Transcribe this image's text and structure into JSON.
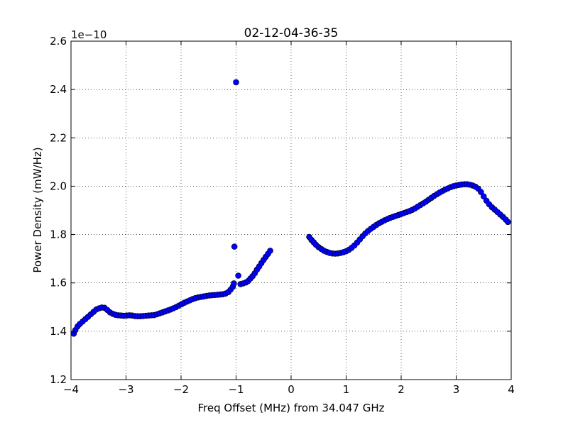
{
  "chart_data": {
    "type": "scatter",
    "title": "02-12-04-36-35",
    "xlabel": "Freq Offset (MHz) from 34.047 GHz",
    "ylabel": "Power Density (mW/Hz)",
    "offset_label": "1e−10",
    "xlim": [
      -4,
      4
    ],
    "ylim": [
      1.2,
      2.6
    ],
    "y_multiplier": "1e-10",
    "xticks": [
      -4,
      -3,
      -2,
      -1,
      0,
      1,
      2,
      3,
      4
    ],
    "xtick_labels": [
      "−4",
      "−3",
      "−2",
      "−1",
      "0",
      "1",
      "2",
      "3",
      "4"
    ],
    "yticks": [
      1.2,
      1.4,
      1.6,
      1.8,
      2.0,
      2.2,
      2.4,
      2.6
    ],
    "ytick_labels": [
      "1.2",
      "1.4",
      "1.6",
      "1.8",
      "2.0",
      "2.2",
      "2.4",
      "2.6"
    ],
    "grid": true,
    "marker_color": "#0000ff",
    "marker_edge_color": "#000000",
    "series": [
      {
        "points": [
          [
            -3.95,
            1.39
          ],
          [
            -3.92,
            1.405
          ],
          [
            -3.88,
            1.42
          ],
          [
            -3.84,
            1.43
          ],
          [
            -3.79,
            1.44
          ],
          [
            -3.74,
            1.45
          ],
          [
            -3.69,
            1.46
          ],
          [
            -3.64,
            1.47
          ],
          [
            -3.59,
            1.48
          ],
          [
            -3.54,
            1.49
          ],
          [
            -3.49,
            1.495
          ],
          [
            -3.44,
            1.498
          ],
          [
            -3.39,
            1.497
          ],
          [
            -3.34,
            1.488
          ],
          [
            -3.29,
            1.478
          ],
          [
            -3.24,
            1.472
          ],
          [
            -3.19,
            1.468
          ],
          [
            -3.14,
            1.466
          ],
          [
            -3.09,
            1.465
          ],
          [
            -3.04,
            1.464
          ],
          [
            -2.99,
            1.465
          ],
          [
            -2.94,
            1.466
          ],
          [
            -2.89,
            1.465
          ],
          [
            -2.84,
            1.463
          ],
          [
            -2.79,
            1.462
          ],
          [
            -2.74,
            1.462
          ],
          [
            -2.69,
            1.463
          ],
          [
            -2.64,
            1.464
          ],
          [
            -2.59,
            1.465
          ],
          [
            -2.54,
            1.466
          ],
          [
            -2.49,
            1.467
          ],
          [
            -2.44,
            1.47
          ],
          [
            -2.39,
            1.474
          ],
          [
            -2.34,
            1.478
          ],
          [
            -2.29,
            1.482
          ],
          [
            -2.24,
            1.486
          ],
          [
            -2.19,
            1.49
          ],
          [
            -2.14,
            1.495
          ],
          [
            -2.09,
            1.5
          ],
          [
            -2.04,
            1.506
          ],
          [
            -1.99,
            1.512
          ],
          [
            -1.94,
            1.518
          ],
          [
            -1.89,
            1.523
          ],
          [
            -1.84,
            1.528
          ],
          [
            -1.79,
            1.533
          ],
          [
            -1.74,
            1.537
          ],
          [
            -1.69,
            1.54
          ],
          [
            -1.64,
            1.542
          ],
          [
            -1.59,
            1.544
          ],
          [
            -1.54,
            1.546
          ],
          [
            -1.49,
            1.548
          ],
          [
            -1.44,
            1.549
          ],
          [
            -1.39,
            1.55
          ],
          [
            -1.34,
            1.551
          ],
          [
            -1.29,
            1.552
          ],
          [
            -1.24,
            1.553
          ],
          [
            -1.19,
            1.556
          ],
          [
            -1.14,
            1.562
          ],
          [
            -1.1,
            1.572
          ],
          [
            -1.06,
            1.584
          ],
          [
            -1.04,
            1.598
          ],
          [
            -1.03,
            1.75
          ],
          [
            -1.0,
            2.43
          ],
          [
            -0.96,
            1.63
          ],
          [
            -0.92,
            1.595
          ],
          [
            -0.87,
            1.598
          ],
          [
            -0.82,
            1.602
          ],
          [
            -0.78,
            1.608
          ],
          [
            -0.74,
            1.618
          ],
          [
            -0.7,
            1.628
          ],
          [
            -0.66,
            1.64
          ],
          [
            -0.62,
            1.655
          ],
          [
            -0.58,
            1.668
          ],
          [
            -0.54,
            1.682
          ],
          [
            -0.5,
            1.695
          ],
          [
            -0.46,
            1.708
          ],
          [
            -0.42,
            1.72
          ],
          [
            -0.38,
            1.733
          ],
          [
            0.33,
            1.79
          ],
          [
            0.37,
            1.778
          ],
          [
            0.41,
            1.768
          ],
          [
            0.45,
            1.758
          ],
          [
            0.5,
            1.748
          ],
          [
            0.55,
            1.74
          ],
          [
            0.6,
            1.733
          ],
          [
            0.65,
            1.728
          ],
          [
            0.7,
            1.724
          ],
          [
            0.75,
            1.722
          ],
          [
            0.8,
            1.721
          ],
          [
            0.85,
            1.722
          ],
          [
            0.9,
            1.724
          ],
          [
            0.95,
            1.727
          ],
          [
            1.0,
            1.731
          ],
          [
            1.05,
            1.737
          ],
          [
            1.1,
            1.745
          ],
          [
            1.15,
            1.755
          ],
          [
            1.2,
            1.767
          ],
          [
            1.25,
            1.78
          ],
          [
            1.3,
            1.793
          ],
          [
            1.35,
            1.805
          ],
          [
            1.4,
            1.815
          ],
          [
            1.45,
            1.824
          ],
          [
            1.5,
            1.832
          ],
          [
            1.55,
            1.84
          ],
          [
            1.6,
            1.847
          ],
          [
            1.65,
            1.853
          ],
          [
            1.7,
            1.859
          ],
          [
            1.75,
            1.864
          ],
          [
            1.8,
            1.869
          ],
          [
            1.85,
            1.873
          ],
          [
            1.9,
            1.877
          ],
          [
            1.95,
            1.881
          ],
          [
            2.0,
            1.885
          ],
          [
            2.05,
            1.889
          ],
          [
            2.1,
            1.893
          ],
          [
            2.15,
            1.897
          ],
          [
            2.2,
            1.902
          ],
          [
            2.25,
            1.908
          ],
          [
            2.3,
            1.915
          ],
          [
            2.35,
            1.922
          ],
          [
            2.4,
            1.929
          ],
          [
            2.45,
            1.936
          ],
          [
            2.5,
            1.944
          ],
          [
            2.55,
            1.952
          ],
          [
            2.6,
            1.96
          ],
          [
            2.65,
            1.967
          ],
          [
            2.7,
            1.974
          ],
          [
            2.75,
            1.98
          ],
          [
            2.8,
            1.986
          ],
          [
            2.85,
            1.991
          ],
          [
            2.9,
            1.996
          ],
          [
            2.95,
            2.0
          ],
          [
            3.0,
            2.003
          ],
          [
            3.05,
            2.005
          ],
          [
            3.1,
            2.007
          ],
          [
            3.15,
            2.008
          ],
          [
            3.2,
            2.008
          ],
          [
            3.25,
            2.006
          ],
          [
            3.3,
            2.003
          ],
          [
            3.35,
            1.998
          ],
          [
            3.4,
            1.99
          ],
          [
            3.45,
            1.976
          ],
          [
            3.5,
            1.958
          ],
          [
            3.55,
            1.94
          ],
          [
            3.6,
            1.925
          ],
          [
            3.65,
            1.913
          ],
          [
            3.7,
            1.903
          ],
          [
            3.75,
            1.893
          ],
          [
            3.8,
            1.883
          ],
          [
            3.85,
            1.873
          ],
          [
            3.9,
            1.862
          ],
          [
            3.94,
            1.852
          ]
        ]
      }
    ]
  }
}
